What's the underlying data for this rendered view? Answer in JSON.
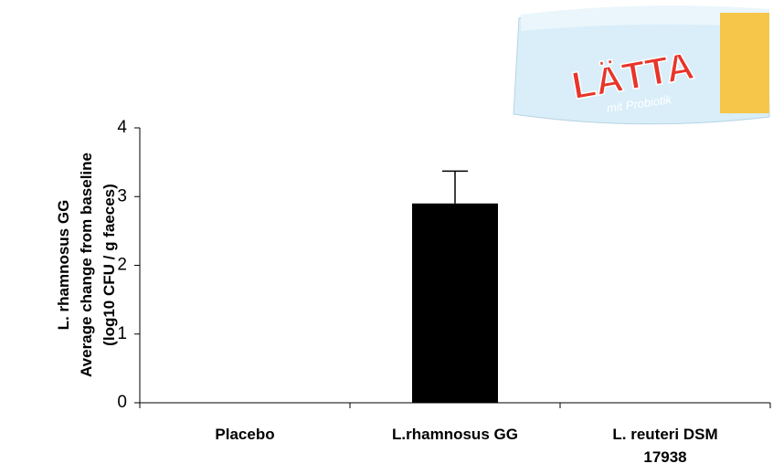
{
  "chart_data": {
    "type": "bar",
    "y_label": [
      "L. rhamnosus GG",
      "Average change from baseline",
      "(log10 CFU / g faeces)"
    ],
    "categories": [
      "Placebo",
      "L.rhamnosus GG",
      "L. reuteri DSM 17938"
    ],
    "values": [
      0,
      2.9,
      0
    ],
    "errors": [
      null,
      0.47,
      null
    ],
    "color": "#000000",
    "ylim": [
      0,
      4
    ],
    "yticks": [
      0,
      1,
      2,
      3,
      4
    ],
    "grid": false
  },
  "image": {
    "brand": "LÄTTA",
    "tagline": "mit Probiotik"
  }
}
